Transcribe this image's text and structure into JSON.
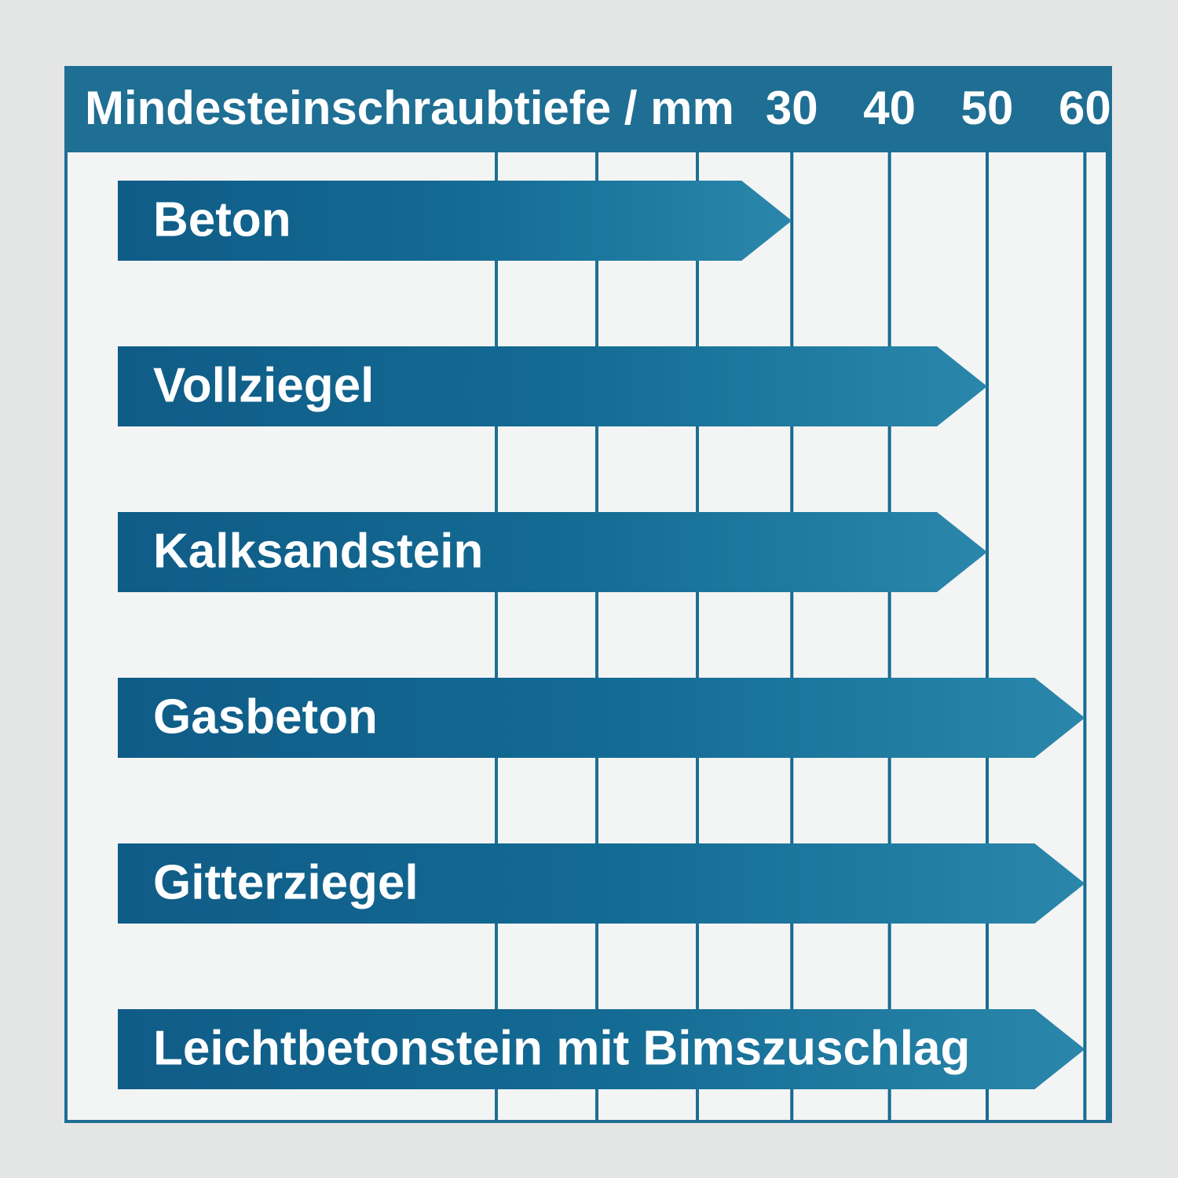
{
  "chart_data": {
    "type": "arrow-bar",
    "orientation": "horizontal",
    "title": "Mindesteinschraubtiefe / mm",
    "categories": [
      "Beton",
      "Vollziegel",
      "Kalksandstein",
      "Gasbeton",
      "Gitterziegel",
      "Leichtbetonstein mit Bimszuschlag"
    ],
    "values": [
      30,
      50,
      50,
      60,
      60,
      60
    ],
    "color": "#176b93",
    "xlim": [
      -39,
      62.7
    ],
    "xticks": [
      30,
      40,
      50,
      60
    ],
    "grid": true
  }
}
